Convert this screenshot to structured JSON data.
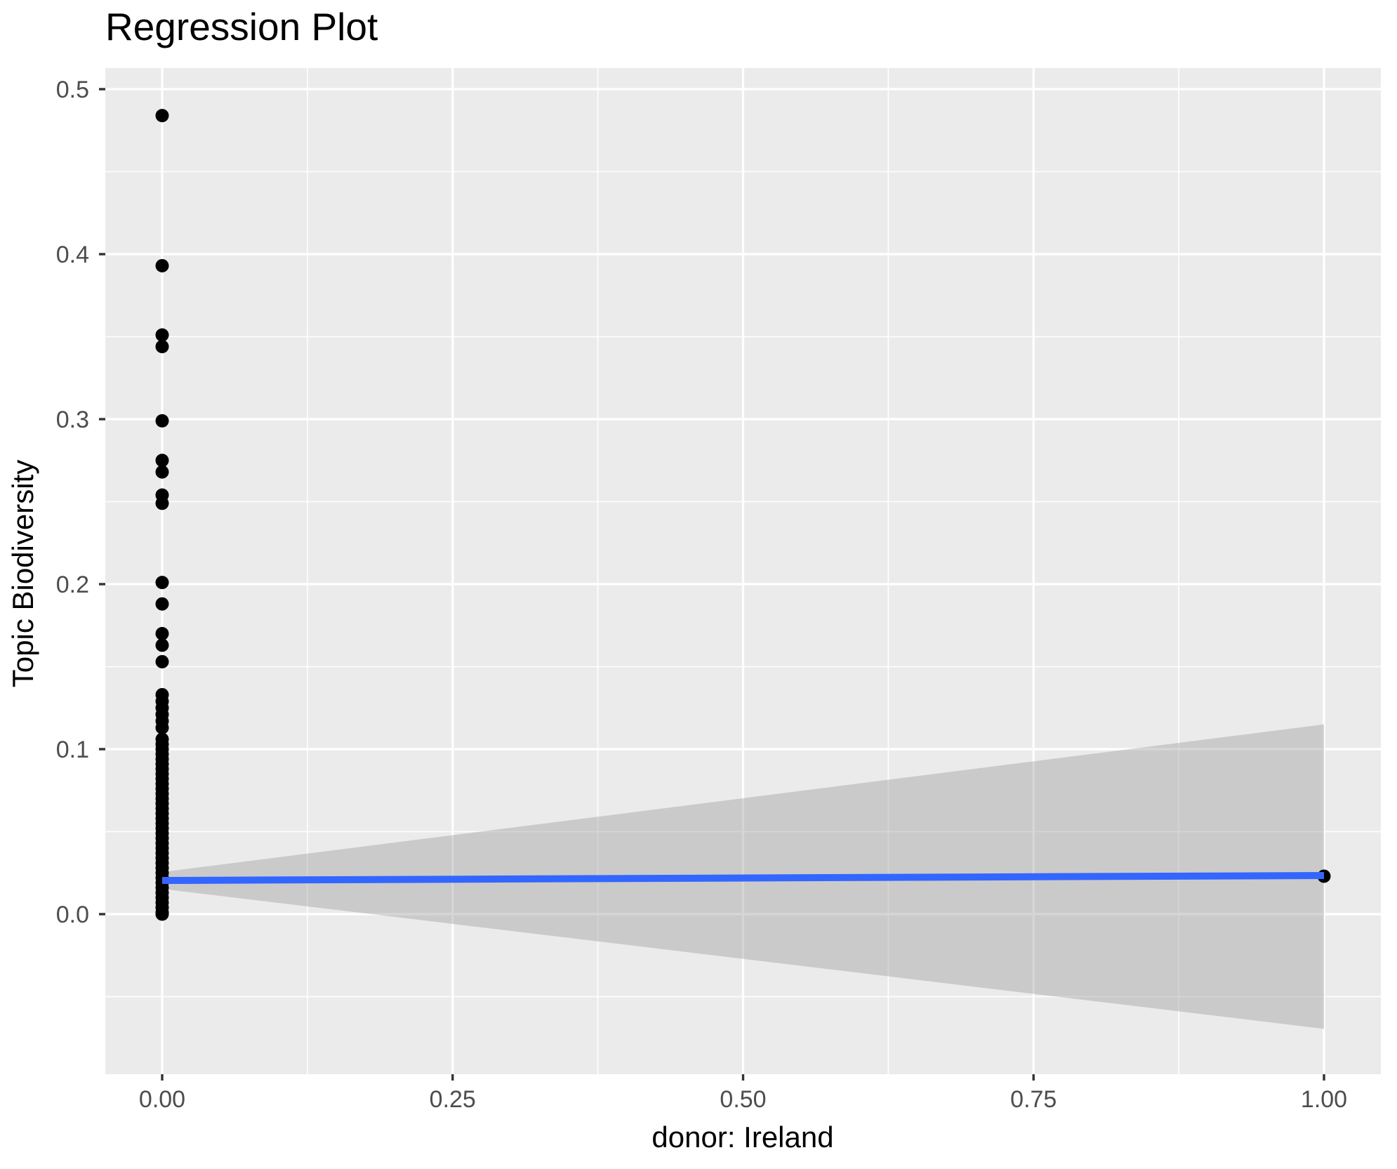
{
  "chart_data": {
    "type": "scatter",
    "title": "Regression Plot",
    "xlabel": "donor: Ireland",
    "ylabel": "Topic Biodiversity",
    "xlim": [
      -0.049,
      1.049
    ],
    "ylim": [
      -0.097,
      0.513
    ],
    "grid": "on",
    "legend": "none",
    "x_ticks": [
      {
        "v": 0.0,
        "label": "0.00"
      },
      {
        "v": 0.25,
        "label": "0.25"
      },
      {
        "v": 0.5,
        "label": "0.50"
      },
      {
        "v": 0.75,
        "label": "0.75"
      },
      {
        "v": 1.0,
        "label": "1.00"
      }
    ],
    "y_ticks": [
      {
        "v": 0.0,
        "label": "0.0"
      },
      {
        "v": 0.1,
        "label": "0.1"
      },
      {
        "v": 0.2,
        "label": "0.2"
      },
      {
        "v": 0.3,
        "label": "0.3"
      },
      {
        "v": 0.4,
        "label": "0.4"
      },
      {
        "v": 0.5,
        "label": "0.5"
      }
    ],
    "x_minor": [
      0.125,
      0.375,
      0.625,
      0.875
    ],
    "y_minor": [
      -0.05,
      0.05,
      0.15,
      0.25,
      0.35,
      0.45
    ],
    "points": [
      [
        0,
        0.484
      ],
      [
        0,
        0.393
      ],
      [
        0,
        0.351
      ],
      [
        0,
        0.344
      ],
      [
        0,
        0.299
      ],
      [
        0,
        0.275
      ],
      [
        0,
        0.268
      ],
      [
        0,
        0.254
      ],
      [
        0,
        0.249
      ],
      [
        0,
        0.201
      ],
      [
        0,
        0.188
      ],
      [
        0,
        0.17
      ],
      [
        0,
        0.163
      ],
      [
        0,
        0.153
      ],
      [
        0,
        0.133
      ],
      [
        0,
        0.129
      ],
      [
        0,
        0.125
      ],
      [
        0,
        0.121
      ],
      [
        0,
        0.117
      ],
      [
        0,
        0.113
      ],
      [
        0,
        0.106
      ],
      [
        0,
        0.103
      ],
      [
        0,
        0.1
      ],
      [
        0,
        0.097
      ],
      [
        0,
        0.094
      ],
      [
        0,
        0.091
      ],
      [
        0,
        0.088
      ],
      [
        0,
        0.085
      ],
      [
        0,
        0.082
      ],
      [
        0,
        0.079
      ],
      [
        0,
        0.076
      ],
      [
        0,
        0.073
      ],
      [
        0,
        0.07
      ],
      [
        0,
        0.067
      ],
      [
        0,
        0.064
      ],
      [
        0,
        0.061
      ],
      [
        0,
        0.058
      ],
      [
        0,
        0.055
      ],
      [
        0,
        0.052
      ],
      [
        0,
        0.049
      ],
      [
        0,
        0.046
      ],
      [
        0,
        0.043
      ],
      [
        0,
        0.04
      ],
      [
        0,
        0.037
      ],
      [
        0,
        0.034
      ],
      [
        0,
        0.031
      ],
      [
        0,
        0.028
      ],
      [
        0,
        0.025
      ],
      [
        0,
        0.022
      ],
      [
        0,
        0.019
      ],
      [
        0,
        0.016
      ],
      [
        0,
        0.013
      ],
      [
        0,
        0.01
      ],
      [
        0,
        0.007
      ],
      [
        0,
        0.004
      ],
      [
        0,
        0.001
      ],
      [
        0,
        0.0
      ],
      [
        1,
        0.023
      ]
    ],
    "regression": {
      "x": [
        0,
        1
      ],
      "y": [
        0.0204,
        0.0234
      ],
      "color": "#3366FF"
    },
    "ci": {
      "upper": [
        [
          0,
          0.0255
        ],
        [
          1,
          0.115
        ]
      ],
      "lower": [
        [
          0,
          0.0153
        ],
        [
          1,
          -0.0695
        ]
      ],
      "color": "#999999",
      "opacity": 0.4
    },
    "colors": {
      "panel": "#EBEBEB",
      "grid": "#FFFFFF",
      "tick_mark": "#333333",
      "tick_text": "#4D4D4D",
      "point": "#000000",
      "title": "#000000"
    }
  }
}
